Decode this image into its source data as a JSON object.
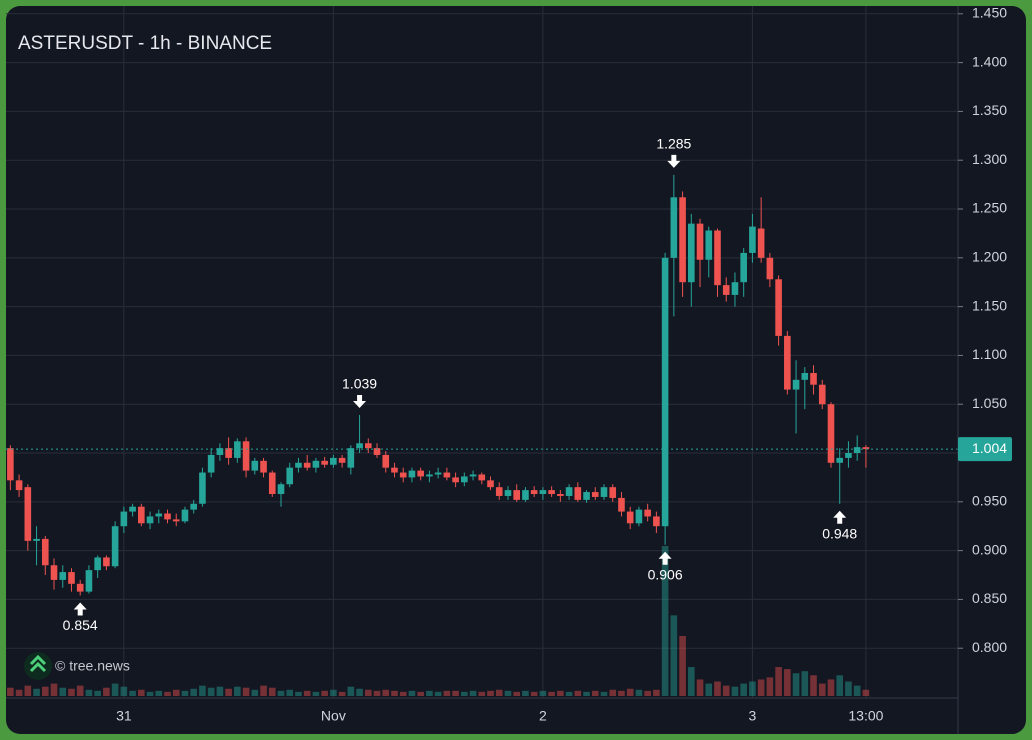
{
  "chart_data": {
    "type": "candlestick",
    "title": "ASTERUSDT - 1h - BINANCE",
    "watermark": "© tree.news",
    "up_color": "#26a69a",
    "down_color": "#ef5350",
    "grid": true,
    "categories": [
      null,
      null,
      null,
      null,
      null,
      null,
      null,
      null,
      null,
      null,
      null,
      null,
      null,
      "31",
      null,
      null,
      null,
      null,
      null,
      null,
      null,
      null,
      null,
      null,
      null,
      null,
      null,
      null,
      null,
      null,
      null,
      null,
      null,
      null,
      null,
      null,
      null,
      "Nov",
      null,
      null,
      null,
      null,
      null,
      null,
      null,
      null,
      null,
      null,
      null,
      null,
      null,
      null,
      null,
      null,
      null,
      null,
      null,
      null,
      null,
      null,
      null,
      "2",
      null,
      null,
      null,
      null,
      null,
      null,
      null,
      null,
      null,
      null,
      null,
      null,
      null,
      null,
      null,
      null,
      null,
      null,
      null,
      null,
      null,
      null,
      null,
      "3",
      null,
      null,
      null,
      null,
      null,
      null,
      null,
      null,
      null,
      null,
      null,
      null,
      "13:00"
    ],
    "open": [
      1.005,
      0.972,
      0.965,
      0.91,
      0.912,
      0.885,
      0.87,
      0.878,
      0.866,
      0.858,
      0.88,
      0.893,
      0.884,
      0.925,
      0.94,
      0.945,
      0.928,
      0.935,
      0.938,
      0.932,
      0.93,
      0.942,
      0.948,
      0.98,
      0.998,
      1.005,
      0.995,
      1.012,
      0.982,
      0.992,
      0.98,
      0.958,
      0.968,
      0.985,
      0.99,
      0.985,
      0.992,
      0.988,
      0.995,
      0.985,
      1.005,
      1.01,
      1.005,
      0.998,
      0.985,
      0.98,
      0.975,
      0.982,
      0.976,
      0.978,
      0.98,
      0.975,
      0.97,
      0.976,
      0.978,
      0.972,
      0.965,
      0.956,
      0.962,
      0.952,
      0.962,
      0.958,
      0.962,
      0.958,
      0.956,
      0.965,
      0.952,
      0.96,
      0.955,
      0.965,
      0.954,
      0.94,
      0.928,
      0.942,
      0.935,
      0.925,
      1.2,
      1.262,
      1.175,
      1.235,
      1.198,
      1.228,
      1.172,
      1.162,
      1.175,
      1.205,
      1.23,
      1.2,
      1.178,
      1.12,
      1.065,
      1.075,
      1.082,
      1.07,
      1.05,
      0.99,
      0.995,
      1.0,
      1.006
    ],
    "high": [
      1.008,
      0.978,
      0.968,
      0.925,
      0.915,
      0.892,
      0.885,
      0.882,
      0.87,
      0.885,
      0.895,
      0.895,
      0.93,
      0.945,
      0.948,
      0.948,
      0.94,
      0.942,
      0.942,
      0.938,
      0.945,
      0.952,
      0.985,
      1.005,
      1.01,
      1.016,
      1.015,
      1.016,
      0.995,
      0.995,
      0.982,
      0.97,
      0.99,
      0.995,
      0.998,
      0.995,
      0.996,
      0.998,
      0.998,
      1.008,
      1.039,
      1.015,
      1.01,
      1.002,
      0.99,
      0.985,
      0.985,
      0.985,
      0.982,
      0.985,
      0.985,
      0.98,
      0.98,
      0.982,
      0.98,
      0.976,
      0.97,
      0.966,
      0.968,
      0.965,
      0.966,
      0.965,
      0.966,
      0.962,
      0.968,
      0.97,
      0.962,
      0.965,
      0.968,
      0.968,
      0.96,
      0.945,
      0.945,
      0.948,
      0.94,
      1.205,
      1.285,
      1.268,
      1.245,
      1.24,
      1.232,
      1.23,
      1.18,
      1.185,
      1.21,
      1.245,
      1.262,
      1.205,
      1.182,
      1.125,
      1.095,
      1.088,
      1.09,
      1.075,
      1.052,
      1.005,
      1.012,
      1.018,
      1.008
    ],
    "low": [
      0.962,
      0.955,
      0.9,
      0.885,
      0.875,
      0.86,
      0.862,
      0.858,
      0.854,
      0.856,
      0.872,
      0.88,
      0.882,
      0.918,
      0.935,
      0.925,
      0.922,
      0.928,
      0.928,
      0.925,
      0.928,
      0.938,
      0.945,
      0.975,
      0.992,
      0.988,
      0.99,
      0.975,
      0.978,
      0.975,
      0.955,
      0.945,
      0.965,
      0.98,
      0.982,
      0.98,
      0.985,
      0.985,
      0.985,
      0.978,
      1.0,
      1.0,
      0.995,
      0.98,
      0.975,
      0.97,
      0.97,
      0.972,
      0.97,
      0.974,
      0.972,
      0.965,
      0.966,
      0.972,
      0.968,
      0.962,
      0.952,
      0.952,
      0.95,
      0.95,
      0.955,
      0.952,
      0.955,
      0.95,
      0.952,
      0.95,
      0.949,
      0.952,
      0.952,
      0.95,
      0.935,
      0.922,
      0.925,
      0.93,
      0.918,
      0.906,
      1.14,
      1.16,
      1.15,
      1.17,
      1.18,
      1.16,
      1.155,
      1.15,
      1.16,
      1.195,
      1.195,
      1.17,
      1.11,
      1.06,
      1.02,
      1.045,
      1.06,
      1.045,
      0.985,
      0.948,
      0.985,
      0.992,
      0.985
    ],
    "close": [
      0.972,
      0.962,
      0.91,
      0.912,
      0.885,
      0.87,
      0.878,
      0.866,
      0.858,
      0.88,
      0.893,
      0.884,
      0.925,
      0.94,
      0.945,
      0.928,
      0.935,
      0.938,
      0.932,
      0.93,
      0.942,
      0.948,
      0.98,
      0.998,
      1.005,
      0.995,
      1.012,
      0.982,
      0.992,
      0.98,
      0.958,
      0.968,
      0.985,
      0.99,
      0.985,
      0.992,
      0.988,
      0.995,
      0.99,
      1.005,
      1.01,
      1.005,
      0.998,
      0.985,
      0.98,
      0.975,
      0.982,
      0.976,
      0.978,
      0.98,
      0.975,
      0.97,
      0.976,
      0.978,
      0.972,
      0.965,
      0.956,
      0.962,
      0.952,
      0.962,
      0.958,
      0.962,
      0.958,
      0.956,
      0.965,
      0.952,
      0.96,
      0.955,
      0.965,
      0.954,
      0.94,
      0.928,
      0.942,
      0.935,
      0.925,
      1.2,
      1.262,
      1.175,
      1.235,
      1.198,
      1.228,
      1.172,
      1.162,
      1.175,
      1.205,
      1.232,
      1.2,
      1.178,
      1.12,
      1.065,
      1.075,
      1.082,
      1.07,
      1.05,
      0.99,
      0.995,
      1.0,
      1.006,
      1.004
    ],
    "volume": [
      8,
      6,
      10,
      7,
      9,
      12,
      8,
      7,
      10,
      6,
      5,
      8,
      12,
      9,
      5,
      6,
      4,
      5,
      4,
      6,
      5,
      7,
      10,
      8,
      9,
      7,
      9,
      8,
      6,
      10,
      8,
      5,
      6,
      4,
      5,
      4,
      5,
      6,
      4,
      9,
      7,
      6,
      5,
      6,
      5,
      4,
      5,
      4,
      5,
      4,
      5,
      5,
      4,
      5,
      4,
      5,
      6,
      5,
      4,
      5,
      4,
      5,
      4,
      5,
      4,
      5,
      4,
      5,
      4,
      6,
      5,
      7,
      6,
      5,
      6,
      145,
      78,
      58,
      28,
      16,
      12,
      14,
      10,
      9,
      12,
      14,
      16,
      18,
      28,
      26,
      22,
      24,
      20,
      12,
      16,
      20,
      14,
      10,
      6
    ],
    "last_price": 1.004,
    "high_marks": [
      1.039,
      1.285
    ],
    "low_marks": [
      0.854,
      0.906,
      0.948
    ],
    "ylim": [
      0.749,
      1.458
    ],
    "yticks": [
      {
        "value": 0.8,
        "label": "0.800"
      },
      {
        "value": 0.85,
        "label": "0.850"
      },
      {
        "value": 0.9,
        "label": "0.900"
      },
      {
        "value": 0.95,
        "label": "0.950"
      },
      {
        "value": 1.0,
        "label": "1.000"
      },
      {
        "value": 1.05,
        "label": "1.050"
      },
      {
        "value": 1.1,
        "label": "1.100"
      },
      {
        "value": 1.15,
        "label": "1.150"
      },
      {
        "value": 1.2,
        "label": "1.200"
      },
      {
        "value": 1.25,
        "label": "1.250"
      },
      {
        "value": 1.3,
        "label": "1.300"
      },
      {
        "value": 1.35,
        "label": "1.350"
      },
      {
        "value": 1.4,
        "label": "1.400"
      },
      {
        "value": 1.45,
        "label": "1.450"
      }
    ]
  }
}
